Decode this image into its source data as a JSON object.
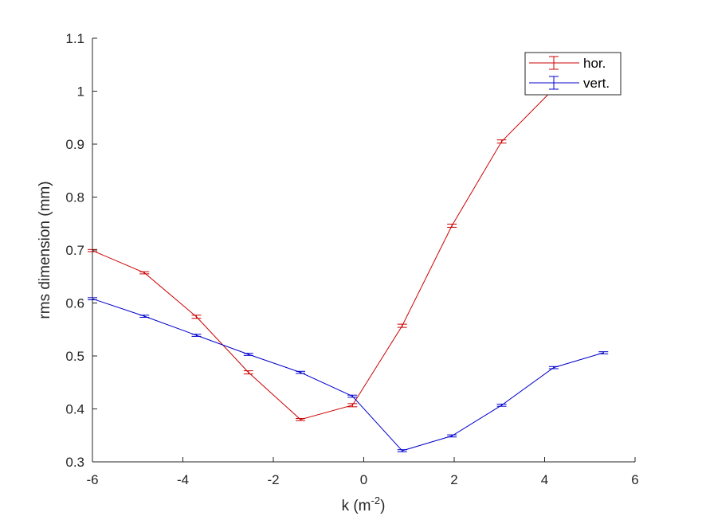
{
  "chart_data": {
    "type": "line",
    "xlabel": "k (m",
    "xlabel_sup": "-2",
    "xlabel_end": ")",
    "ylabel": "rms dimension (mm)",
    "xlim": [
      -6,
      6
    ],
    "ylim": [
      0.3,
      1.1
    ],
    "xticks": [
      "-6",
      "-4",
      "-2",
      "0",
      "2",
      "4",
      "6"
    ],
    "yticks": [
      "0.3",
      "0.4",
      "0.5",
      "0.6",
      "0.7",
      "0.8",
      "0.9",
      "1",
      "1.1"
    ],
    "grid": false,
    "legend_position": "top-right",
    "series": [
      {
        "name": "hor.",
        "color": "#cc0000",
        "x": [
          -6.0,
          -4.85,
          -3.7,
          -2.55,
          -1.4,
          -0.25,
          0.85,
          1.95,
          3.05,
          4.15
        ],
        "y": [
          0.699,
          0.657,
          0.574,
          0.469,
          0.38,
          0.407,
          0.557,
          0.746,
          0.905,
          1.0
        ],
        "err": [
          0.002,
          0.002,
          0.003,
          0.003,
          0.002,
          0.003,
          0.003,
          0.003,
          0.003,
          0.003
        ]
      },
      {
        "name": "vert.",
        "color": "#0000cc",
        "x": [
          -6.0,
          -4.85,
          -3.7,
          -2.55,
          -1.4,
          -0.25,
          0.85,
          1.95,
          3.05,
          4.2,
          5.3
        ],
        "y": [
          0.608,
          0.575,
          0.539,
          0.503,
          0.469,
          0.424,
          0.321,
          0.349,
          0.407,
          0.478,
          0.506
        ],
        "err": [
          0.002,
          0.002,
          0.002,
          0.002,
          0.002,
          0.002,
          0.002,
          0.002,
          0.002,
          0.002,
          0.002
        ]
      }
    ]
  }
}
